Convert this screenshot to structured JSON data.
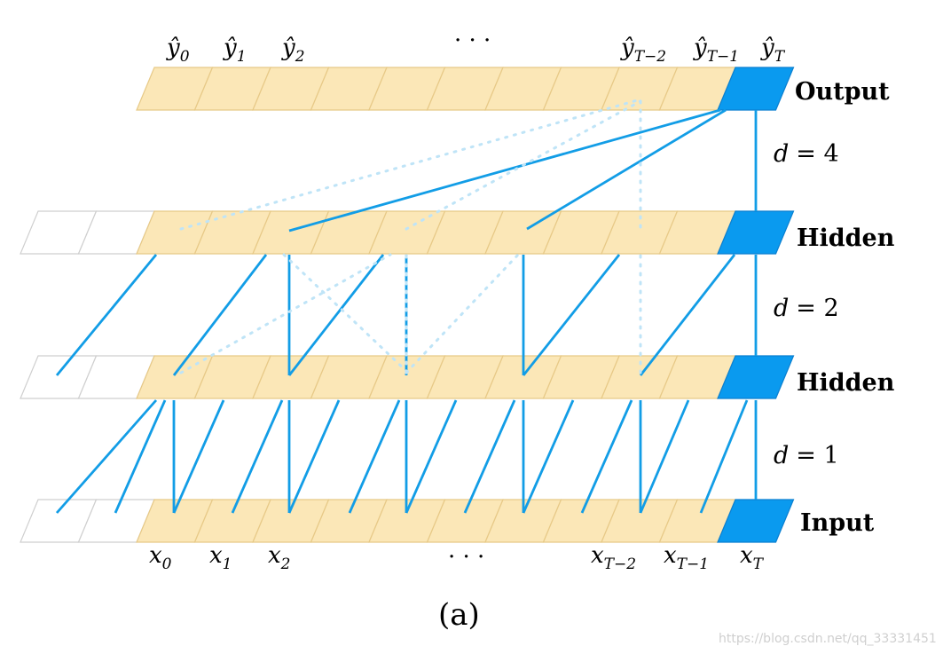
{
  "diagram": {
    "caption": "(a)",
    "watermark": "https://blog.csdn.net/qq_33331451",
    "ellipsis": "· · ·",
    "dilations": [
      {
        "d": "d",
        "eq": "= 4"
      },
      {
        "d": "d",
        "eq": "= 2"
      },
      {
        "d": "d",
        "eq": "= 1"
      }
    ],
    "layers": [
      {
        "name": "Output"
      },
      {
        "name": "Hidden"
      },
      {
        "name": "Hidden"
      },
      {
        "name": "Input"
      }
    ],
    "output_labels": [
      {
        "base": "ŷ",
        "sub": "0"
      },
      {
        "base": "ŷ",
        "sub": "1"
      },
      {
        "base": "ŷ",
        "sub": "2"
      },
      {
        "base": "ŷ",
        "sub": "T−2"
      },
      {
        "base": "ŷ",
        "sub": "T−1"
      },
      {
        "base": "ŷ",
        "sub": "T"
      }
    ],
    "input_labels": [
      {
        "base": "x",
        "sub": "0"
      },
      {
        "base": "x",
        "sub": "1"
      },
      {
        "base": "x",
        "sub": "2"
      },
      {
        "base": "x",
        "sub": "T−2"
      },
      {
        "base": "x",
        "sub": "T−1"
      },
      {
        "base": "x",
        "sub": "T"
      }
    ],
    "colors": {
      "cell_fill": "#fbe7b7",
      "highlight": "#0a9aef",
      "edge": "#129de6"
    }
  }
}
